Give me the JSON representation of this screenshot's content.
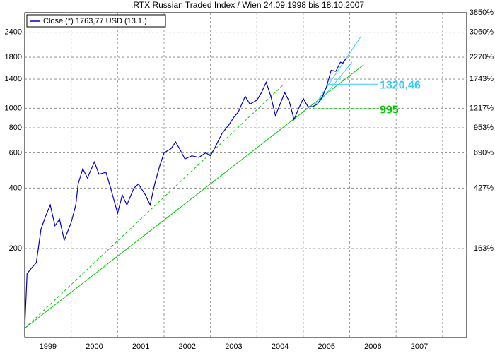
{
  "chart_data": {
    "type": "line",
    "title": ".RTX Russian Traded Index / Wien 24.09.1998 bis 18.10.2007",
    "log_scale": true,
    "grid": true,
    "legend": "top-left",
    "xlim": [
      1999.0,
      2008.52
    ],
    "xticks": [
      {
        "value": 1999.5,
        "label": "1999"
      },
      {
        "value": 2000.5,
        "label": "2000"
      },
      {
        "value": 2001.5,
        "label": "2001"
      },
      {
        "value": 2002.5,
        "label": "2002"
      },
      {
        "value": 2003.5,
        "label": "2003"
      },
      {
        "value": 2004.5,
        "label": "2004"
      },
      {
        "value": 2005.5,
        "label": "2005"
      },
      {
        "value": 2006.5,
        "label": "2006"
      },
      {
        "value": 2007.5,
        "label": "2007"
      }
    ],
    "ylim": [
      72,
      3002
    ],
    "yticks": [
      200,
      400,
      600,
      800,
      1000,
      1400,
      1800,
      2400
    ],
    "y2lim": [
      -5.3,
      3850
    ],
    "y2ticks": [
      {
        "value": 163,
        "label": "163%"
      },
      {
        "value": 427,
        "label": "427%"
      },
      {
        "value": 690,
        "label": "690%"
      },
      {
        "value": 953,
        "label": "953%"
      },
      {
        "value": 1217,
        "label": "1217%"
      },
      {
        "value": 1743,
        "label": "1743%"
      },
      {
        "value": 2270,
        "label": "2270%"
      },
      {
        "value": 3060,
        "label": "3060%"
      },
      {
        "value": 3850,
        "label": "3850%"
      }
    ],
    "x": [
      1999.0,
      1999.05,
      1999.15,
      1999.25,
      1999.35,
      1999.45,
      1999.55,
      1999.65,
      1999.75,
      1999.85,
      2000.0,
      2000.1,
      2000.15,
      2000.25,
      2000.35,
      2000.5,
      2000.6,
      2000.75,
      2000.85,
      2001.0,
      2001.1,
      2001.2,
      2001.35,
      2001.45,
      2001.6,
      2001.7,
      2001.8,
      2001.9,
      2002.0,
      2002.15,
      2002.25,
      2002.35,
      2002.45,
      2002.6,
      2002.75,
      2002.9,
      2003.0,
      2003.1,
      2003.25,
      2003.4,
      2003.5,
      2003.6,
      2003.75,
      2003.85,
      2004.0,
      2004.1,
      2004.2,
      2004.3,
      2004.4,
      2004.5,
      2004.6,
      2004.7,
      2004.8,
      2004.9,
      2005.0,
      2005.1,
      2005.2,
      2005.3,
      2005.4,
      2005.5,
      2005.6,
      2005.7,
      2005.8,
      2005.85,
      2005.93
    ],
    "series": [
      {
        "name": "Close (*) 1763,77 USD (13.1.)",
        "color": "#0000cc",
        "values": [
          80,
          150,
          160,
          170,
          250,
          290,
          330,
          260,
          280,
          220,
          270,
          330,
          420,
          500,
          450,
          540,
          470,
          480,
          400,
          300,
          370,
          330,
          400,
          420,
          370,
          330,
          420,
          510,
          600,
          630,
          680,
          620,
          560,
          580,
          570,
          600,
          580,
          640,
          750,
          830,
          900,
          960,
          1150,
          1050,
          1100,
          1200,
          1350,
          1150,
          920,
          1050,
          1200,
          1080,
          880,
          1000,
          1120,
          1020,
          1020,
          1050,
          1130,
          1280,
          1550,
          1530,
          1700,
          1680,
          1790
        ]
      }
    ],
    "trendlines": [
      {
        "x": [
          1999.0,
          2006.3
        ],
        "values": [
          80,
          1650
        ],
        "color": "#00cc00",
        "dashed": false
      },
      {
        "x": [
          1999.0,
          2004.55
        ],
        "values": [
          80,
          1300
        ],
        "color": "#00cc00",
        "dashed": true
      },
      {
        "x": [
          2005.2,
          2006.25
        ],
        "values": [
          1000,
          2300
        ],
        "color": "#33ccff",
        "dashed": false
      },
      {
        "x": [
          2005.35,
          2006.05
        ],
        "values": [
          1080,
          1700
        ],
        "color": "#33ccff",
        "dashed": false
      }
    ],
    "levels": [
      {
        "x": [
          1999.0,
          2006.5
        ],
        "value": 1050,
        "color": "#cc0000",
        "dashed": true
      },
      {
        "x": [
          2005.5,
          2006.6
        ],
        "value": 1320.46,
        "value_label": "1320,46",
        "color": "#33ccff",
        "dashed": false
      },
      {
        "x": [
          2005.2,
          2006.6
        ],
        "value": 995,
        "value_label": "995",
        "color": "#00cc00",
        "dashed": false
      }
    ]
  }
}
